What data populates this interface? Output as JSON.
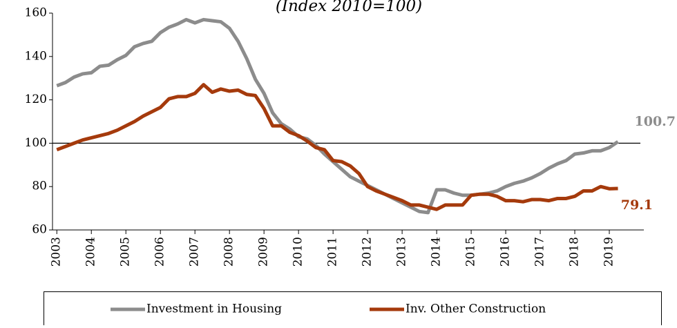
{
  "chart_data": {
    "type": "line",
    "subtitle": "(Index 2010=100)",
    "x": [
      2003,
      2003.25,
      2003.5,
      2003.75,
      2004,
      2004.25,
      2004.5,
      2004.75,
      2005,
      2005.25,
      2005.5,
      2005.75,
      2006,
      2006.25,
      2006.5,
      2006.75,
      2007,
      2007.25,
      2007.5,
      2007.75,
      2008,
      2008.25,
      2008.5,
      2008.75,
      2009,
      2009.25,
      2009.5,
      2009.75,
      2010,
      2010.25,
      2010.5,
      2010.75,
      2011,
      2011.25,
      2011.5,
      2011.75,
      2012,
      2012.25,
      2012.5,
      2012.75,
      2013,
      2013.25,
      2013.5,
      2013.75,
      2014,
      2014.25,
      2014.5,
      2014.75,
      2015,
      2015.25,
      2015.5,
      2015.75,
      2016,
      2016.25,
      2016.5,
      2016.75,
      2017,
      2017.25,
      2017.5,
      2017.75,
      2018,
      2018.25,
      2018.5,
      2018.75,
      2019,
      2019.25
    ],
    "series": [
      {
        "name": "Investment in Housing",
        "color": "#8c8c8c",
        "values": [
          126.5,
          128,
          130.5,
          132,
          132.5,
          135.5,
          136,
          138.5,
          140.5,
          144.5,
          146,
          147,
          151,
          153.5,
          155,
          157,
          155.5,
          157,
          156.5,
          156,
          153,
          147,
          139,
          129.5,
          123,
          114,
          109,
          106.5,
          103,
          102,
          99,
          95,
          91.5,
          88,
          84.5,
          82.5,
          80.5,
          78.5,
          76.5,
          74.5,
          72.5,
          70.5,
          68.5,
          68,
          78.5,
          78.5,
          77,
          76,
          76,
          76.5,
          77,
          78,
          80,
          81.5,
          82.5,
          84,
          86,
          88.5,
          90.5,
          92,
          95,
          95.5,
          96.5,
          96.5,
          98,
          100.7
        ]
      },
      {
        "name": "Inv. Other Construction",
        "color": "#a53a0c",
        "values": [
          97,
          98.5,
          100,
          101.5,
          102.5,
          103.5,
          104.5,
          106,
          108,
          110,
          112.5,
          114.5,
          116.5,
          120.5,
          121.5,
          121.5,
          123,
          127,
          123.5,
          125,
          124,
          124.5,
          122.5,
          122,
          116,
          108,
          108,
          105,
          103.5,
          101,
          98,
          97,
          92,
          91.5,
          89.5,
          86,
          80,
          78,
          76.5,
          75,
          73.5,
          71.5,
          71.5,
          70.5,
          69.5,
          71.5,
          71.5,
          71.5,
          76,
          76.5,
          76.5,
          75.5,
          73.5,
          73.5,
          73,
          74,
          74,
          73.5,
          74.5,
          74.5,
          75.5,
          78,
          78,
          80,
          79,
          79.1
        ]
      }
    ],
    "xlim": [
      2002.875,
      2020
    ],
    "xticks": [
      2003,
      2004,
      2005,
      2006,
      2007,
      2008,
      2009,
      2010,
      2011,
      2012,
      2013,
      2014,
      2015,
      2016,
      2017,
      2018,
      2019
    ],
    "ylim": [
      60,
      160
    ],
    "yticks": [
      60,
      80,
      100,
      120,
      140,
      160
    ],
    "reference_line": 100,
    "grid": false,
    "legend": "bottom"
  }
}
